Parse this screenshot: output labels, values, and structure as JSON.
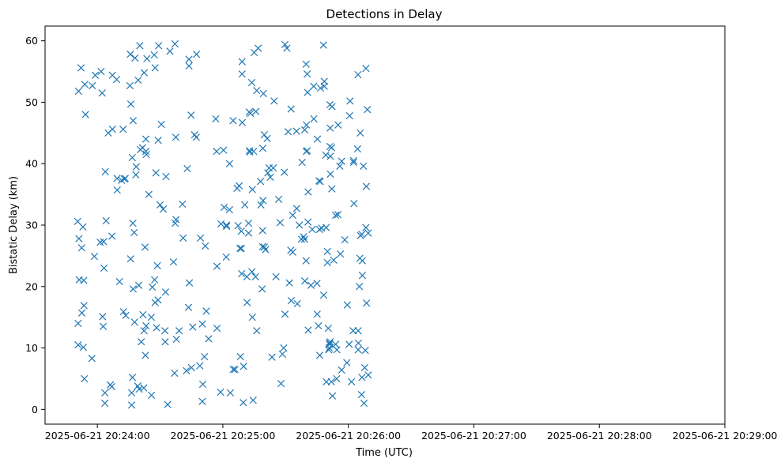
{
  "chart_data": {
    "type": "scatter",
    "title": "Detections in Delay",
    "xlabel": "Time (UTC)",
    "ylabel": "Bistatic Delay (km)",
    "marker": "x",
    "color": "#1f77b4",
    "grid": false,
    "xlim_seconds_after_20_23_35": [
      0,
      325
    ],
    "ylim": [
      -2.4,
      62.4
    ],
    "x_ticks": [
      {
        "label": "2025-06-21 20:24:00",
        "t": 25
      },
      {
        "label": "2025-06-21 20:25:00",
        "t": 85
      },
      {
        "label": "2025-06-21 20:26:00",
        "t": 145
      },
      {
        "label": "2025-06-21 20:27:00",
        "t": 205
      },
      {
        "label": "2025-06-21 20:28:00",
        "t": 265
      },
      {
        "label": "2025-06-21 20:29:00",
        "t": 325
      }
    ],
    "y_ticks": [
      0,
      10,
      20,
      30,
      40,
      50,
      60
    ],
    "points_t_seconds_delay_km": [
      [
        15.6,
        30.6
      ],
      [
        15.8,
        14.0
      ],
      [
        15.8,
        10.5
      ],
      [
        16.0,
        51.8
      ],
      [
        16.2,
        27.8
      ],
      [
        16.3,
        21.1
      ],
      [
        17.2,
        55.6
      ],
      [
        17.5,
        26.3
      ],
      [
        17.6,
        15.7
      ],
      [
        18.1,
        29.7
      ],
      [
        18.3,
        10.1
      ],
      [
        18.5,
        21.0
      ],
      [
        18.6,
        16.9
      ],
      [
        18.8,
        5.0
      ],
      [
        19.0,
        52.9
      ],
      [
        19.3,
        48.0
      ],
      [
        22.4,
        8.3
      ],
      [
        22.6,
        52.7
      ],
      [
        23.6,
        24.9
      ],
      [
        24.0,
        54.4
      ],
      [
        26.4,
        27.2
      ],
      [
        26.8,
        55.0
      ],
      [
        27.3,
        51.5
      ],
      [
        27.5,
        15.1
      ],
      [
        27.8,
        13.5
      ],
      [
        28.0,
        27.3
      ],
      [
        28.2,
        23.0
      ],
      [
        28.6,
        1.0
      ],
      [
        28.6,
        2.7
      ],
      [
        28.8,
        38.7
      ],
      [
        29.2,
        30.7
      ],
      [
        30.2,
        45.0
      ],
      [
        31.2,
        4.0
      ],
      [
        31.9,
        3.7
      ],
      [
        32.0,
        28.2
      ],
      [
        32.2,
        54.4
      ],
      [
        32.2,
        45.6
      ],
      [
        34.2,
        53.7
      ],
      [
        34.4,
        37.6
      ],
      [
        34.5,
        35.7
      ],
      [
        35.6,
        20.8
      ],
      [
        36.6,
        37.3
      ],
      [
        37.3,
        45.6
      ],
      [
        37.5,
        15.9
      ],
      [
        37.9,
        37.5
      ],
      [
        38.3,
        37.6
      ],
      [
        38.6,
        15.3
      ],
      [
        40.6,
        52.7
      ],
      [
        40.8,
        57.8
      ],
      [
        40.9,
        24.5
      ],
      [
        41.0,
        49.7
      ],
      [
        41.4,
        2.7
      ],
      [
        41.4,
        0.7
      ],
      [
        41.7,
        41.0
      ],
      [
        41.8,
        5.2
      ],
      [
        42.0,
        30.3
      ],
      [
        42.1,
        19.6
      ],
      [
        42.1,
        47.0
      ],
      [
        42.6,
        28.8
      ],
      [
        42.8,
        14.2
      ],
      [
        43.0,
        57.2
      ],
      [
        43.4,
        38.2
      ],
      [
        43.6,
        39.5
      ],
      [
        44.3,
        3.8
      ],
      [
        44.5,
        53.6
      ],
      [
        44.8,
        20.2
      ],
      [
        45.0,
        3.3
      ],
      [
        45.3,
        59.2
      ],
      [
        45.6,
        42.3
      ],
      [
        46.0,
        11.0
      ],
      [
        46.6,
        42.6
      ],
      [
        46.8,
        15.4
      ],
      [
        47.2,
        3.5
      ],
      [
        47.3,
        12.8
      ],
      [
        47.4,
        54.8
      ],
      [
        47.8,
        26.4
      ],
      [
        48.0,
        8.8
      ],
      [
        48.2,
        42.0
      ],
      [
        48.2,
        44.0
      ],
      [
        48.3,
        13.6
      ],
      [
        48.4,
        41.5
      ],
      [
        48.7,
        57.1
      ],
      [
        49.6,
        35.0
      ],
      [
        50.8,
        15.0
      ],
      [
        50.9,
        2.3
      ],
      [
        51.3,
        19.9
      ],
      [
        52.2,
        57.7
      ],
      [
        52.4,
        21.1
      ],
      [
        52.6,
        55.6
      ],
      [
        52.6,
        17.4
      ],
      [
        53.0,
        38.5
      ],
      [
        53.3,
        13.3
      ],
      [
        53.7,
        23.4
      ],
      [
        54.0,
        17.8
      ],
      [
        54.1,
        43.8
      ],
      [
        54.3,
        59.2
      ],
      [
        55.0,
        33.3
      ],
      [
        55.6,
        46.4
      ],
      [
        56.5,
        32.6
      ],
      [
        57.3,
        12.8
      ],
      [
        57.4,
        11.0
      ],
      [
        57.6,
        19.1
      ],
      [
        57.8,
        37.9
      ],
      [
        58.6,
        0.8
      ],
      [
        59.7,
        58.3
      ],
      [
        61.4,
        24.0
      ],
      [
        61.9,
        5.9
      ],
      [
        62.1,
        59.5
      ],
      [
        62.2,
        30.3
      ],
      [
        62.5,
        44.3
      ],
      [
        62.6,
        30.9
      ],
      [
        62.8,
        11.4
      ],
      [
        64.1,
        12.8
      ],
      [
        65.7,
        33.4
      ],
      [
        66.0,
        27.9
      ],
      [
        67.6,
        6.3
      ],
      [
        68.0,
        39.2
      ],
      [
        68.6,
        16.6
      ],
      [
        68.8,
        57.0
      ],
      [
        68.8,
        55.9
      ],
      [
        69.0,
        20.6
      ],
      [
        69.8,
        47.9
      ],
      [
        70.0,
        6.8
      ],
      [
        70.6,
        13.4
      ],
      [
        71.5,
        44.7
      ],
      [
        72.3,
        44.3
      ],
      [
        72.4,
        57.8
      ],
      [
        74.0,
        7.1
      ],
      [
        74.3,
        27.9
      ],
      [
        75.2,
        13.9
      ],
      [
        75.2,
        1.3
      ],
      [
        75.4,
        4.1
      ],
      [
        76.2,
        8.6
      ],
      [
        76.6,
        26.6
      ],
      [
        77.1,
        16.0
      ],
      [
        78.2,
        11.5
      ],
      [
        81.6,
        47.3
      ],
      [
        82.0,
        42.0
      ],
      [
        82.2,
        23.3
      ],
      [
        82.2,
        13.2
      ],
      [
        83.9,
        2.8
      ],
      [
        84.1,
        30.2
      ],
      [
        85.3,
        42.2
      ],
      [
        85.6,
        32.9
      ],
      [
        86.6,
        24.8
      ],
      [
        86.7,
        30.0
      ],
      [
        86.8,
        29.8
      ],
      [
        88.2,
        40.0
      ],
      [
        88.2,
        32.5
      ],
      [
        88.6,
        2.7
      ],
      [
        89.9,
        47.0
      ],
      [
        90.0,
        6.5
      ],
      [
        90.8,
        6.5
      ],
      [
        91.8,
        36.0
      ],
      [
        92.3,
        29.9
      ],
      [
        92.8,
        36.4
      ],
      [
        93.2,
        26.2
      ],
      [
        93.4,
        8.6
      ],
      [
        93.8,
        29.0
      ],
      [
        93.8,
        26.2
      ],
      [
        94.0,
        22.1
      ],
      [
        94.2,
        56.6
      ],
      [
        94.2,
        54.6
      ],
      [
        94.3,
        46.7
      ],
      [
        94.8,
        1.1
      ],
      [
        94.9,
        7.0
      ],
      [
        95.5,
        33.3
      ],
      [
        96.5,
        21.6
      ],
      [
        96.6,
        17.4
      ],
      [
        97.3,
        30.3
      ],
      [
        97.3,
        28.7
      ],
      [
        97.6,
        48.4
      ],
      [
        97.7,
        42.1
      ],
      [
        97.9,
        41.9
      ],
      [
        98.2,
        48.2
      ],
      [
        98.8,
        53.2
      ],
      [
        98.9,
        22.4
      ],
      [
        99.1,
        15.0
      ],
      [
        99.1,
        35.8
      ],
      [
        99.5,
        1.5
      ],
      [
        99.7,
        42.0
      ],
      [
        100.0,
        58.1
      ],
      [
        100.6,
        21.6
      ],
      [
        100.8,
        48.5
      ],
      [
        101.2,
        51.9
      ],
      [
        101.2,
        12.8
      ],
      [
        101.9,
        58.8
      ],
      [
        103.0,
        37.1
      ],
      [
        103.2,
        33.3
      ],
      [
        103.8,
        19.6
      ],
      [
        104.0,
        29.1
      ],
      [
        104.0,
        26.5
      ],
      [
        104.1,
        42.5
      ],
      [
        104.2,
        34.0
      ],
      [
        104.4,
        51.4
      ],
      [
        104.8,
        44.7
      ],
      [
        104.8,
        26.4
      ],
      [
        105.4,
        26.0
      ],
      [
        106.2,
        44.1
      ],
      [
        106.5,
        38.5
      ],
      [
        107.1,
        39.3
      ],
      [
        107.7,
        37.8
      ],
      [
        108.5,
        8.5
      ],
      [
        109.1,
        39.3
      ],
      [
        109.5,
        50.2
      ],
      [
        110.4,
        21.6
      ],
      [
        111.7,
        34.2
      ],
      [
        112.4,
        30.4
      ],
      [
        112.8,
        4.2
      ],
      [
        113.5,
        9.0
      ],
      [
        114.1,
        10.0
      ],
      [
        114.4,
        38.6
      ],
      [
        114.7,
        15.5
      ],
      [
        114.7,
        59.4
      ],
      [
        115.6,
        58.8
      ],
      [
        116.2,
        45.2
      ],
      [
        116.8,
        20.6
      ],
      [
        117.5,
        25.9
      ],
      [
        117.6,
        48.9
      ],
      [
        117.7,
        17.7
      ],
      [
        118.4,
        31.6
      ],
      [
        118.4,
        25.6
      ],
      [
        120.2,
        45.3
      ],
      [
        120.3,
        32.7
      ],
      [
        120.6,
        17.2
      ],
      [
        121.6,
        30.0
      ],
      [
        122.6,
        27.7
      ],
      [
        122.9,
        40.2
      ],
      [
        123.6,
        28.1
      ],
      [
        124.1,
        27.7
      ],
      [
        124.1,
        45.5
      ],
      [
        124.2,
        20.9
      ],
      [
        124.8,
        24.2
      ],
      [
        124.8,
        56.2
      ],
      [
        124.9,
        42.0
      ],
      [
        125.0,
        46.3
      ],
      [
        125.3,
        54.6
      ],
      [
        125.3,
        42.1
      ],
      [
        125.5,
        51.6
      ],
      [
        125.7,
        30.5
      ],
      [
        125.8,
        35.4
      ],
      [
        125.8,
        12.9
      ],
      [
        127.1,
        20.2
      ],
      [
        127.7,
        29.3
      ],
      [
        128.4,
        52.6
      ],
      [
        128.5,
        47.3
      ],
      [
        130.0,
        20.5
      ],
      [
        130.1,
        15.5
      ],
      [
        130.2,
        44.0
      ],
      [
        130.7,
        13.6
      ],
      [
        131.0,
        37.2
      ],
      [
        131.2,
        29.3
      ],
      [
        131.3,
        8.8
      ],
      [
        131.5,
        37.1
      ],
      [
        131.7,
        52.3
      ],
      [
        132.2,
        29.5
      ],
      [
        133.1,
        59.3
      ],
      [
        133.2,
        18.6
      ],
      [
        133.5,
        53.4
      ],
      [
        133.5,
        52.6
      ],
      [
        134.2,
        41.4
      ],
      [
        134.4,
        29.6
      ],
      [
        134.5,
        4.5
      ],
      [
        135.0,
        25.7
      ],
      [
        135.0,
        23.9
      ],
      [
        135.4,
        13.2
      ],
      [
        135.6,
        9.7
      ],
      [
        135.9,
        10.0
      ],
      [
        136.0,
        10.8
      ],
      [
        136.0,
        10.6
      ],
      [
        136.2,
        42.8
      ],
      [
        136.2,
        49.6
      ],
      [
        136.3,
        11.0
      ],
      [
        136.3,
        45.8
      ],
      [
        136.4,
        41.2
      ],
      [
        136.4,
        38.3
      ],
      [
        136.9,
        4.5
      ],
      [
        137.0,
        42.6
      ],
      [
        137.1,
        35.9
      ],
      [
        137.2,
        49.3
      ],
      [
        137.4,
        2.2
      ],
      [
        138.0,
        24.3
      ],
      [
        138.9,
        10.6
      ],
      [
        138.9,
        31.6
      ],
      [
        139.4,
        5.0
      ],
      [
        139.5,
        9.7
      ],
      [
        140.0,
        31.7
      ],
      [
        140.1,
        46.3
      ],
      [
        140.9,
        39.6
      ],
      [
        141.2,
        25.3
      ],
      [
        141.8,
        40.4
      ],
      [
        141.8,
        6.4
      ],
      [
        143.3,
        27.6
      ],
      [
        144.3,
        7.6
      ],
      [
        144.5,
        17.0
      ],
      [
        145.4,
        10.6
      ],
      [
        145.6,
        47.8
      ],
      [
        145.8,
        50.2
      ],
      [
        146.5,
        4.5
      ],
      [
        147.3,
        12.8
      ],
      [
        147.5,
        40.2
      ],
      [
        147.5,
        40.5
      ],
      [
        147.7,
        33.5
      ],
      [
        149.4,
        42.4
      ],
      [
        149.6,
        54.5
      ],
      [
        149.7,
        9.7
      ],
      [
        149.7,
        12.8
      ],
      [
        149.8,
        10.8
      ],
      [
        150.3,
        20.0
      ],
      [
        150.5,
        24.6
      ],
      [
        150.7,
        45.0
      ],
      [
        150.8,
        28.3
      ],
      [
        151.3,
        2.4
      ],
      [
        151.4,
        28.5
      ],
      [
        151.5,
        5.2
      ],
      [
        151.7,
        24.2
      ],
      [
        151.7,
        21.8
      ],
      [
        152.2,
        39.6
      ],
      [
        152.5,
        1.0
      ],
      [
        152.8,
        6.8
      ],
      [
        153.1,
        9.6
      ],
      [
        153.4,
        29.6
      ],
      [
        153.4,
        55.5
      ],
      [
        153.6,
        36.3
      ],
      [
        153.7,
        17.3
      ],
      [
        154.1,
        48.8
      ],
      [
        154.5,
        28.7
      ],
      [
        154.5,
        5.6
      ]
    ]
  }
}
